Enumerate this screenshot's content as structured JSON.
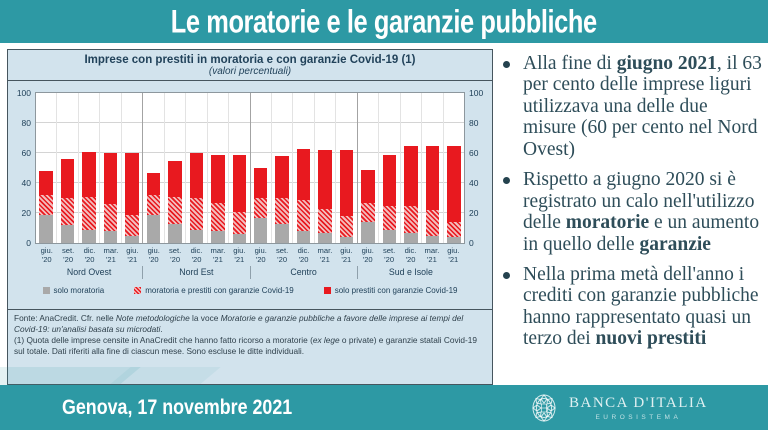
{
  "slide": {
    "title": "Le moratorie e le garanzie pubbliche"
  },
  "chart_panel": {
    "title": "Imprese con prestiti in moratoria e con garanzie Covid-19 (1)",
    "subtitle": "(valori percentuali)",
    "footnotes": [
      [
        {
          "t": "Fonte: AnaCredit. Cfr. nelle "
        },
        {
          "t": "Note metodologiche",
          "i": true
        },
        {
          "t": " la voce "
        },
        {
          "t": "Moratorie e garanzie pubbliche a favore delle imprese ai tempi del Covid-19: un'analisi basata su microdati",
          "i": true
        },
        {
          "t": "."
        }
      ],
      [
        {
          "t": "(1) Quota delle imprese censite in AnaCredit che hanno fatto ricorso a moratorie ("
        },
        {
          "t": "ex lege",
          "i": true
        },
        {
          "t": " o private) e garanzie statali Covid-19 sul totale. Dati riferiti alla fine di ciascun mese. Sono escluse le ditte individuali."
        }
      ]
    ]
  },
  "chart_data": {
    "type": "bar",
    "stacked": true,
    "title": "Imprese con prestiti in moratoria e con garanzie Covid-19 (1)",
    "subtitle": "(valori percentuali)",
    "ylim": [
      0,
      100
    ],
    "yticks": [
      0,
      20,
      40,
      60,
      80,
      100
    ],
    "grid": true,
    "legend_position": "bottom",
    "groups": [
      "Nord Ovest",
      "Nord Est",
      "Centro",
      "Sud e Isole"
    ],
    "periods": [
      [
        "giu.",
        "'20"
      ],
      [
        "set.",
        "'20"
      ],
      [
        "dic.",
        "'20"
      ],
      [
        "mar.",
        "'21"
      ],
      [
        "giu.",
        "'21"
      ]
    ],
    "series": [
      {
        "name": "solo moratoria",
        "color": "#a9a9a9",
        "values": [
          [
            19,
            12,
            9,
            8,
            5
          ],
          [
            19,
            13,
            9,
            8,
            6
          ],
          [
            17,
            13,
            8,
            7,
            4
          ],
          [
            14,
            9,
            7,
            5,
            4
          ]
        ]
      },
      {
        "name": "moratoria e prestiti con garanzie Covid-19",
        "color": "#e8191f",
        "color2": "#f3bcbc",
        "hatch": true,
        "values": [
          [
            13,
            18,
            22,
            18,
            14
          ],
          [
            13,
            18,
            21,
            19,
            15
          ],
          [
            13,
            17,
            21,
            16,
            14
          ],
          [
            13,
            16,
            18,
            17,
            10
          ]
        ]
      },
      {
        "name": "solo prestiti con garanzie Covid-19",
        "color": "#e8191f",
        "values": [
          [
            16,
            26,
            30,
            34,
            41
          ],
          [
            15,
            24,
            30,
            32,
            38
          ],
          [
            20,
            28,
            34,
            39,
            44
          ],
          [
            22,
            34,
            40,
            43,
            51
          ]
        ]
      }
    ]
  },
  "bullets": [
    [
      {
        "t": "Alla fine di "
      },
      {
        "t": "giugno 2021",
        "b": true
      },
      {
        "t": ", il 63 per cento delle imprese liguri utilizzava una delle due misure (60 per cento nel Nord Ovest)"
      }
    ],
    [
      {
        "t": "Rispetto a giugno 2020 si è registrato un calo nell'utilizzo delle "
      },
      {
        "t": "moratorie",
        "b": true
      },
      {
        "t": " e un aumento in quello delle "
      },
      {
        "t": "garanzie",
        "b": true
      }
    ],
    [
      {
        "t": "Nella prima metà dell'anno i crediti con garanzie pubbliche hanno rappresentato quasi un terzo dei "
      },
      {
        "t": "nuovi prestiti",
        "b": true
      }
    ]
  ],
  "footer": {
    "date": "Genova, 17 novembre 2021",
    "bank_name": "BANCA D'ITALIA",
    "bank_subtitle": "EUROSISTEMA"
  },
  "colors": {
    "accent_teal": "#2d99a4",
    "panel_bg": "#d2e3ed",
    "text_navy": "#21425a",
    "bullet_text": "#2e4d59",
    "bar_gray": "#a9a9a9",
    "bar_red": "#e8191f"
  }
}
